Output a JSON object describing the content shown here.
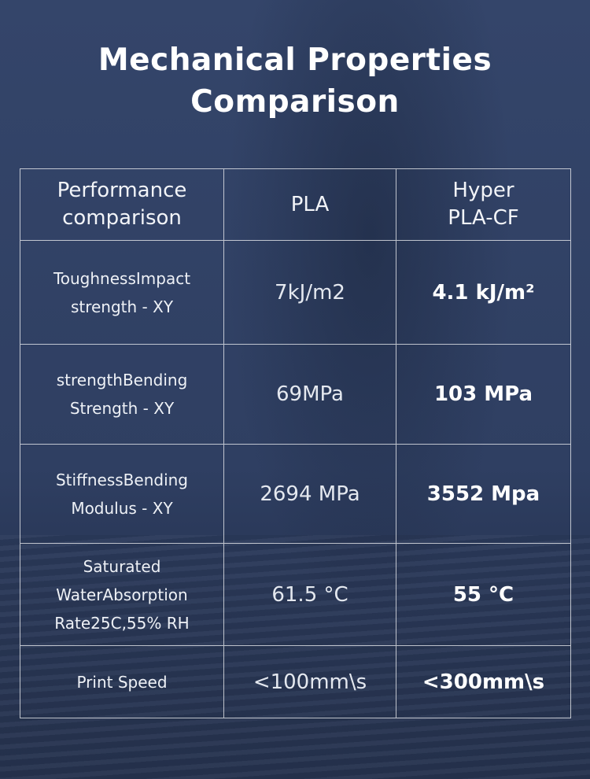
{
  "header": {
    "title": "Mechanical Properties Comparison"
  },
  "table": {
    "columns": [
      "Performance comparison",
      "PLA",
      "Hyper PLA-CF"
    ],
    "rows": [
      [
        "ToughnessImpact strength - XY",
        "7kJ/m2",
        "4.1 kJ/m²"
      ],
      [
        "strengthBending Strength - XY",
        "69MPa",
        "103 MPa"
      ],
      [
        "StiffnessBending Modulus - XY",
        "2694 MPa",
        "3552 Mpa"
      ],
      [
        "Saturated WaterAbsorption Rate25C,55% RH",
        "61.5 °C",
        "55 °C"
      ],
      [
        "Print Speed",
        "<100mm\\s",
        "<300mm\\s"
      ]
    ]
  }
}
